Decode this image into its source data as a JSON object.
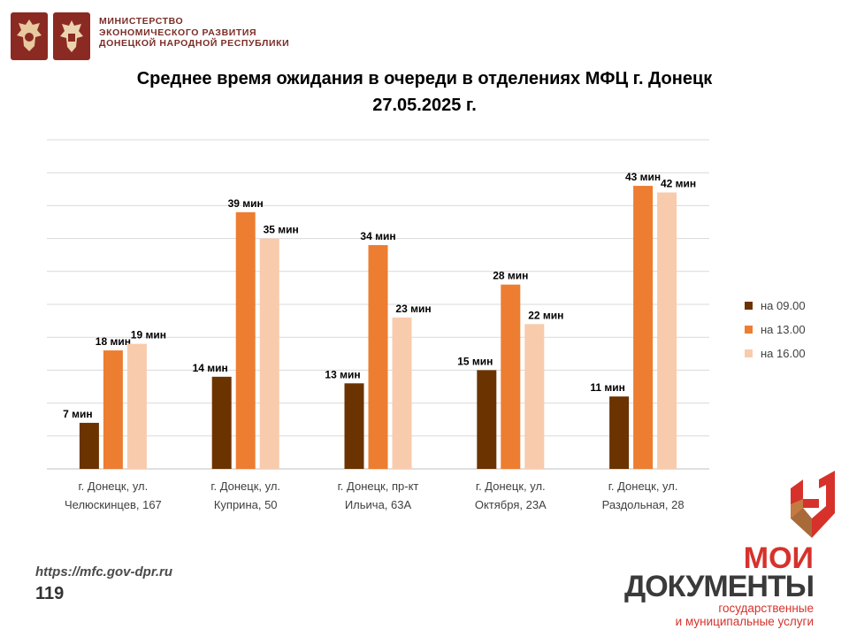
{
  "header": {
    "ministry_line1": "МИНИСТЕРСТВО",
    "ministry_line2": "ЭКОНОМИЧЕСКОГО РАЗВИТИЯ",
    "ministry_line3": "ДОНЕЦКОЙ НАРОДНОЙ РЕСПУБЛИКИ"
  },
  "title_line1": "Среднее время ожидания в очереди в отделениях МФЦ г. Донецк",
  "title_line2": "27.05.2025 г.",
  "footer": {
    "url": "https://mfc.gov-dpr.ru",
    "page_number": "119"
  },
  "brand": {
    "line1": "МОИ",
    "line2": "ДОКУМЕНТЫ",
    "line3": "государственные",
    "line4": "и муниципальные услуги"
  },
  "colors": {
    "series_0900": "#6b3300",
    "series_1300": "#ed7d31",
    "series_1600": "#f8cbad",
    "ministry_text": "#7b2d26",
    "brand_red": "#d6322b"
  },
  "chart_data": {
    "type": "bar",
    "categories": [
      [
        "г. Донецк, ул.",
        "Челюскинцев, 167"
      ],
      [
        "г. Донецк, ул.",
        "Куприна, 50"
      ],
      [
        "г. Донецк, пр-кт",
        "Ильича, 63А"
      ],
      [
        "г. Донецк, ул.",
        "Октября, 23А"
      ],
      [
        "г. Донецк, ул.",
        "Раздольная, 28"
      ]
    ],
    "series": [
      {
        "name": "на 09.00",
        "values": [
          7,
          14,
          13,
          15,
          11
        ],
        "color": "#6b3300"
      },
      {
        "name": "на 13.00",
        "values": [
          18,
          39,
          34,
          28,
          43
        ],
        "color": "#ed7d31"
      },
      {
        "name": "на 16.00",
        "values": [
          19,
          35,
          23,
          22,
          42
        ],
        "color": "#f8cbad"
      }
    ],
    "value_suffix": " мин",
    "ylim": [
      0,
      50
    ],
    "grid": true,
    "legend_position": "right"
  }
}
